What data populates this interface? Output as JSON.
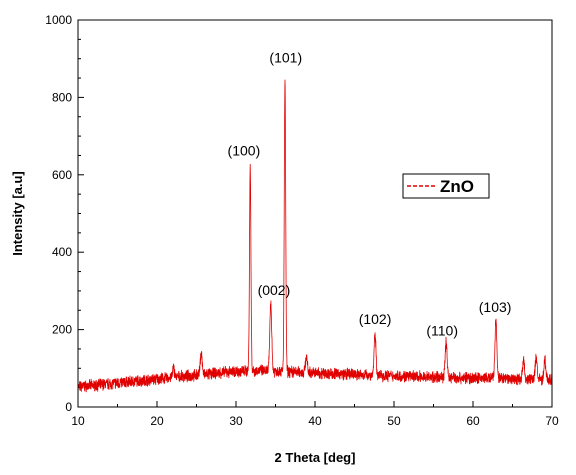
{
  "chart_data": {
    "type": "line",
    "title": "",
    "xlabel": "2 Theta [deg]",
    "ylabel": "Intensity [a.u]",
    "xlim": [
      10,
      70
    ],
    "ylim": [
      0,
      1000
    ],
    "x_ticks": [
      10,
      20,
      30,
      40,
      50,
      60,
      70
    ],
    "y_ticks": [
      0,
      200,
      400,
      600,
      800,
      1000
    ],
    "grid": false,
    "legend_position": "center-right",
    "series": [
      {
        "name": "ZnO",
        "color": "#e00000",
        "line_style": "solid",
        "legend_style": "dashed",
        "baseline": [
          [
            10,
            52
          ],
          [
            15,
            62
          ],
          [
            20,
            72
          ],
          [
            25,
            82
          ],
          [
            28,
            88
          ],
          [
            30,
            92
          ],
          [
            33,
            94
          ],
          [
            36,
            92
          ],
          [
            40,
            88
          ],
          [
            45,
            84
          ],
          [
            50,
            80
          ],
          [
            55,
            77
          ],
          [
            60,
            75
          ],
          [
            65,
            73
          ],
          [
            70,
            70
          ]
        ],
        "peaks": [
          [
            22.1,
            100
          ],
          [
            25.6,
            140
          ],
          [
            31.8,
            620
          ],
          [
            34.4,
            270
          ],
          [
            36.2,
            840
          ],
          [
            38.9,
            130
          ],
          [
            47.6,
            185
          ],
          [
            56.6,
            170
          ],
          [
            62.9,
            220
          ],
          [
            66.4,
            120
          ],
          [
            68.0,
            130
          ],
          [
            69.1,
            120
          ]
        ]
      }
    ],
    "annotations": [
      {
        "text": "(100)",
        "x": 31.0,
        "y": 650
      },
      {
        "text": "(101)",
        "x": 36.3,
        "y": 890
      },
      {
        "text": "(002)",
        "x": 34.8,
        "y": 290
      },
      {
        "text": "(102)",
        "x": 47.6,
        "y": 215
      },
      {
        "text": "(110)",
        "x": 56.1,
        "y": 185
      },
      {
        "text": "(103)",
        "x": 62.8,
        "y": 245
      }
    ]
  }
}
